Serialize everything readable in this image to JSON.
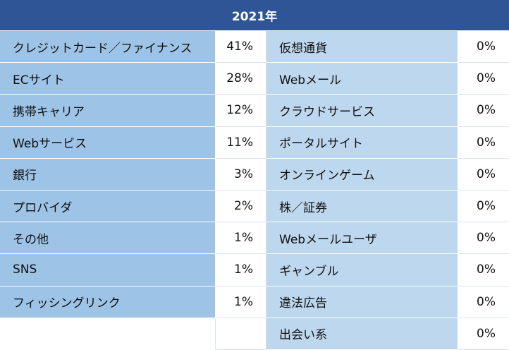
{
  "title": "2021年",
  "left": [
    {
      "label": "クレジットカード／ファイナンス",
      "value": "41%"
    },
    {
      "label": "ECサイト",
      "value": "28%"
    },
    {
      "label": "携帯キャリア",
      "value": "12%"
    },
    {
      "label": "Webサービス",
      "value": "11%"
    },
    {
      "label": "銀行",
      "value": "3%"
    },
    {
      "label": "プロバイダ",
      "value": "2%"
    },
    {
      "label": "その他",
      "value": "1%"
    },
    {
      "label": "SNS",
      "value": "1%"
    },
    {
      "label": "フィッシングリンク",
      "value": "1%"
    }
  ],
  "right": [
    {
      "label": "仮想通貨",
      "value": "0%"
    },
    {
      "label": "Webメール",
      "value": "0%"
    },
    {
      "label": "クラウドサービス",
      "value": "0%"
    },
    {
      "label": "ポータルサイト",
      "value": "0%"
    },
    {
      "label": "オンラインゲーム",
      "value": "0%"
    },
    {
      "label": "株／証券",
      "value": "0%"
    },
    {
      "label": "Webメールユーザ",
      "value": "0%"
    },
    {
      "label": "ギャンブル",
      "value": "0%"
    },
    {
      "label": "違法広告",
      "value": "0%"
    },
    {
      "label": "出会い系",
      "value": "0%"
    }
  ]
}
